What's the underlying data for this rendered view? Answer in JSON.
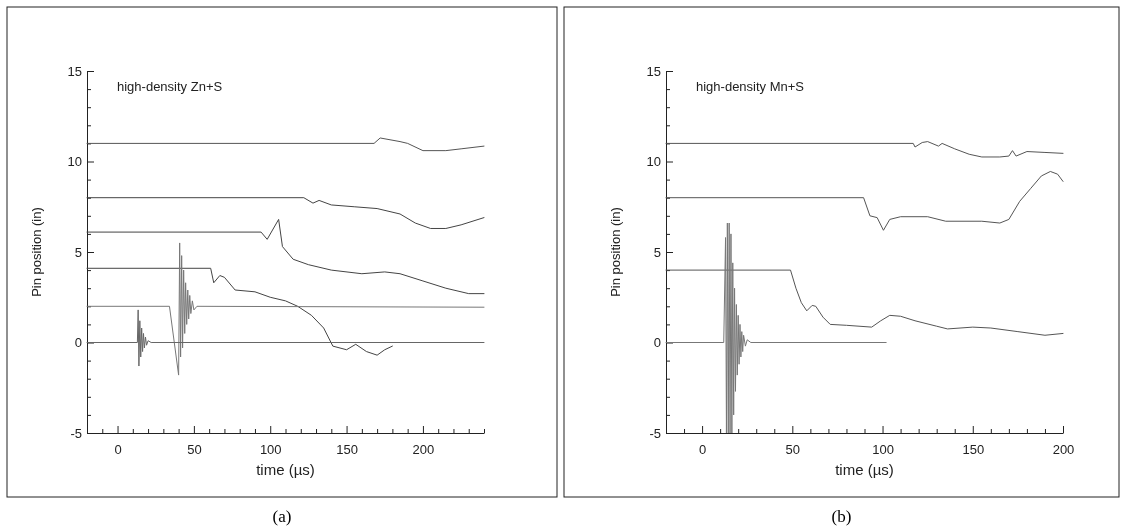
{
  "chart_data": [
    {
      "type": "line",
      "xlabel": "time (µs)",
      "ylabel": "Pin position (in)",
      "annotations": [
        "high-density Zn+S",
        "(a)"
      ],
      "xlim": [
        -20,
        240
      ],
      "ylim": [
        -5,
        15
      ],
      "xticks": [
        {
          "value": -10,
          "label": null
        },
        0,
        {
          "value": 10,
          "label": null
        },
        {
          "value": 20,
          "label": null
        },
        {
          "value": 30,
          "label": null
        },
        {
          "value": 40,
          "label": null
        },
        50,
        {
          "value": 60,
          "label": null
        },
        {
          "value": 70,
          "label": null
        },
        {
          "value": 80,
          "label": null
        },
        {
          "value": 90,
          "label": null
        },
        100,
        {
          "value": 110,
          "label": null
        },
        {
          "value": 120,
          "label": null
        },
        {
          "value": 130,
          "label": null
        },
        {
          "value": 140,
          "label": null
        },
        150,
        {
          "value": 160,
          "label": null
        },
        {
          "value": 170,
          "label": null
        },
        {
          "value": 180,
          "label": null
        },
        {
          "value": 190,
          "label": null
        },
        200,
        {
          "value": 210,
          "label": null
        },
        {
          "value": 220,
          "label": null
        },
        {
          "value": 230,
          "label": null
        },
        {
          "value": 240,
          "label": null
        }
      ],
      "yticks": [
        -5,
        {
          "value": -4,
          "label": null
        },
        {
          "value": -3,
          "label": null
        },
        {
          "value": -2,
          "label": null
        },
        {
          "value": -1,
          "label": null
        },
        0,
        {
          "value": 1,
          "label": null
        },
        {
          "value": 2,
          "label": null
        },
        {
          "value": 3,
          "label": null
        },
        {
          "value": 4,
          "label": null
        },
        5,
        {
          "value": 6,
          "label": null
        },
        {
          "value": 7,
          "label": null
        },
        {
          "value": 8,
          "label": null
        },
        {
          "value": 9,
          "label": null
        },
        10,
        {
          "value": 11,
          "label": null
        },
        {
          "value": 12,
          "label": null
        },
        {
          "value": 13,
          "label": null
        },
        {
          "value": 14,
          "label": null
        },
        15
      ],
      "series": [
        {
          "color": "#555555",
          "x": [
            -20,
            168,
            172,
            185,
            190,
            200,
            215,
            225,
            240
          ],
          "values": [
            11,
            11,
            11.3,
            11.1,
            11,
            10.6,
            10.6,
            10.7,
            10.85
          ]
        },
        {
          "color": "#444444",
          "x": [
            -20,
            122,
            128,
            132,
            140,
            155,
            170,
            185,
            195,
            205,
            215,
            225,
            240
          ],
          "values": [
            8,
            8,
            7.7,
            7.85,
            7.6,
            7.5,
            7.4,
            7.1,
            6.6,
            6.3,
            6.3,
            6.5,
            6.9
          ]
        },
        {
          "color": "#444444",
          "x": [
            -20,
            94,
            98,
            105.5,
            108,
            115,
            125,
            140,
            160,
            175,
            185,
            200,
            215,
            230,
            240
          ],
          "values": [
            6.1,
            6.1,
            5.7,
            6.8,
            5.3,
            4.6,
            4.3,
            4,
            3.8,
            3.9,
            3.8,
            3.4,
            3,
            2.7,
            2.7
          ]
        },
        {
          "color": "#444444",
          "x": [
            -20,
            61,
            63,
            67,
            70,
            77,
            90,
            100,
            110,
            118,
            127,
            135,
            141,
            150,
            156,
            163,
            170,
            175,
            180
          ],
          "values": [
            4.1,
            4.1,
            3.3,
            3.7,
            3.6,
            2.9,
            2.8,
            2.5,
            2.3,
            2,
            1.5,
            0.8,
            -0.2,
            -0.4,
            -0.1,
            -0.5,
            -0.7,
            -0.4,
            -0.2
          ]
        },
        {
          "color": "#777777",
          "x": [
            -20,
            34,
            40,
            40.7,
            41.3,
            42,
            42.6,
            43.3,
            44,
            44.6,
            45.3,
            46,
            46.6,
            47.3,
            48,
            49,
            50,
            52,
            240
          ],
          "values": [
            2,
            2,
            -1.8,
            5.5,
            -0.8,
            4.8,
            -0.3,
            4,
            0.5,
            3.3,
            1,
            2.9,
            1.3,
            2.6,
            1.6,
            2.3,
            1.8,
            2,
            1.95
          ]
        },
        {
          "color": "#666666",
          "x": [
            -20,
            13,
            13.5,
            14,
            14.6,
            15.2,
            15.8,
            16.4,
            17,
            17.6,
            18.3,
            19,
            20,
            22,
            240
          ],
          "values": [
            0,
            0,
            1.8,
            -1.3,
            1.2,
            -0.8,
            0.8,
            -0.5,
            0.5,
            -0.3,
            0.3,
            -0.15,
            0.1,
            0,
            0
          ]
        }
      ]
    },
    {
      "type": "line",
      "xlabel": "time (µs)",
      "ylabel": "Pin position (in)",
      "annotations": [
        "high-density Mn+S",
        "(b)"
      ],
      "xlim": [
        -20,
        200
      ],
      "ylim": [
        -5,
        15
      ],
      "xticks": [
        {
          "value": -10,
          "label": null
        },
        0,
        {
          "value": 10,
          "label": null
        },
        {
          "value": 20,
          "label": null
        },
        {
          "value": 30,
          "label": null
        },
        {
          "value": 40,
          "label": null
        },
        50,
        {
          "value": 60,
          "label": null
        },
        {
          "value": 70,
          "label": null
        },
        {
          "value": 80,
          "label": null
        },
        {
          "value": 90,
          "label": null
        },
        100,
        {
          "value": 110,
          "label": null
        },
        {
          "value": 120,
          "label": null
        },
        {
          "value": 130,
          "label": null
        },
        {
          "value": 140,
          "label": null
        },
        150,
        {
          "value": 160,
          "label": null
        },
        {
          "value": 170,
          "label": null
        },
        {
          "value": 180,
          "label": null
        },
        {
          "value": 190,
          "label": null
        },
        200
      ],
      "yticks": [
        -5,
        {
          "value": -4,
          "label": null
        },
        {
          "value": -3,
          "label": null
        },
        {
          "value": -2,
          "label": null
        },
        {
          "value": -1,
          "label": null
        },
        0,
        {
          "value": 1,
          "label": null
        },
        {
          "value": 2,
          "label": null
        },
        {
          "value": 3,
          "label": null
        },
        {
          "value": 4,
          "label": null
        },
        5,
        {
          "value": 6,
          "label": null
        },
        {
          "value": 7,
          "label": null
        },
        {
          "value": 8,
          "label": null
        },
        {
          "value": 9,
          "label": null
        },
        10,
        {
          "value": 11,
          "label": null
        },
        {
          "value": 12,
          "label": null
        },
        {
          "value": 13,
          "label": null
        },
        {
          "value": 14,
          "label": null
        },
        15
      ],
      "series": [
        {
          "color": "#555555",
          "x": [
            -20,
            117,
            118,
            122,
            125,
            131,
            133,
            140,
            148,
            155,
            165,
            170,
            172,
            174,
            180,
            190,
            200
          ],
          "values": [
            11,
            11,
            10.8,
            11.05,
            11.1,
            10.85,
            11,
            10.7,
            10.4,
            10.25,
            10.25,
            10.3,
            10.6,
            10.3,
            10.55,
            10.5,
            10.45
          ]
        },
        {
          "color": "#555555",
          "x": [
            -20,
            89.5,
            93,
            97,
            100.5,
            104,
            110,
            125,
            135,
            155,
            165,
            170,
            176,
            182,
            188,
            193,
            197,
            200
          ],
          "values": [
            8,
            8,
            7,
            6.9,
            6.2,
            6.8,
            6.95,
            6.95,
            6.7,
            6.7,
            6.6,
            6.8,
            7.8,
            8.5,
            9.2,
            9.45,
            9.3,
            8.9
          ]
        },
        {
          "color": "#555555",
          "x": [
            -20,
            49,
            52,
            55,
            58,
            61,
            63,
            67,
            71,
            80,
            94,
            99,
            104,
            110,
            118,
            130,
            136,
            150,
            160,
            175,
            190,
            200
          ],
          "values": [
            4,
            4,
            3,
            2.2,
            1.75,
            2.05,
            2,
            1.4,
            1,
            0.95,
            0.85,
            1.2,
            1.5,
            1.45,
            1.2,
            0.9,
            0.75,
            0.85,
            0.8,
            0.6,
            0.4,
            0.5
          ]
        },
        {
          "color": "#777777",
          "x": [
            -20,
            12,
            13,
            13.5,
            14,
            14.5,
            15,
            15.5,
            16,
            16.5,
            17,
            17.5,
            18,
            18.5,
            19,
            19.5,
            20,
            20.5,
            21,
            21.5,
            22,
            22.5,
            23,
            24,
            25,
            27,
            102
          ],
          "values": [
            0,
            0,
            5.8,
            -5,
            6.6,
            -5,
            6.6,
            -5,
            6,
            -5,
            4.4,
            -4,
            3,
            -2.7,
            2.1,
            -1.8,
            1.5,
            -1.2,
            1,
            -0.8,
            0.6,
            -0.5,
            0.4,
            -0.2,
            0.15,
            0,
            0
          ]
        }
      ]
    }
  ]
}
